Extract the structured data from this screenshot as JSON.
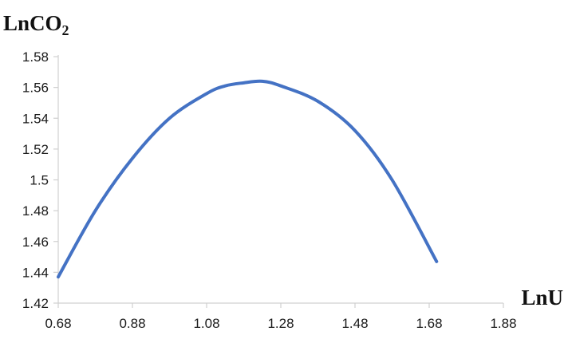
{
  "chart_data": {
    "type": "line",
    "title": "",
    "xlabel": "LnU",
    "ylabel": {
      "main": "LnCO",
      "sub": "2"
    },
    "xlim": [
      0.68,
      1.88
    ],
    "ylim": [
      1.42,
      1.58
    ],
    "x_ticks": [
      "0.68",
      "0.88",
      "1.08",
      "1.28",
      "1.48",
      "1.68",
      "1.88"
    ],
    "y_ticks": [
      "1.42",
      "1.44",
      "1.46",
      "1.48",
      "1.5",
      "1.52",
      "1.54",
      "1.56",
      "1.58"
    ],
    "grid": false,
    "legend": "none",
    "series": [
      {
        "color": "#4472c4",
        "x": [
          0.68,
          0.78,
          0.88,
          0.98,
          1.08,
          1.13,
          1.18,
          1.23,
          1.28,
          1.38,
          1.48,
          1.58,
          1.7
        ],
        "y": [
          1.437,
          1.48,
          1.514,
          1.54,
          1.556,
          1.561,
          1.563,
          1.564,
          1.561,
          1.551,
          1.532,
          1.5,
          1.447
        ]
      }
    ]
  }
}
